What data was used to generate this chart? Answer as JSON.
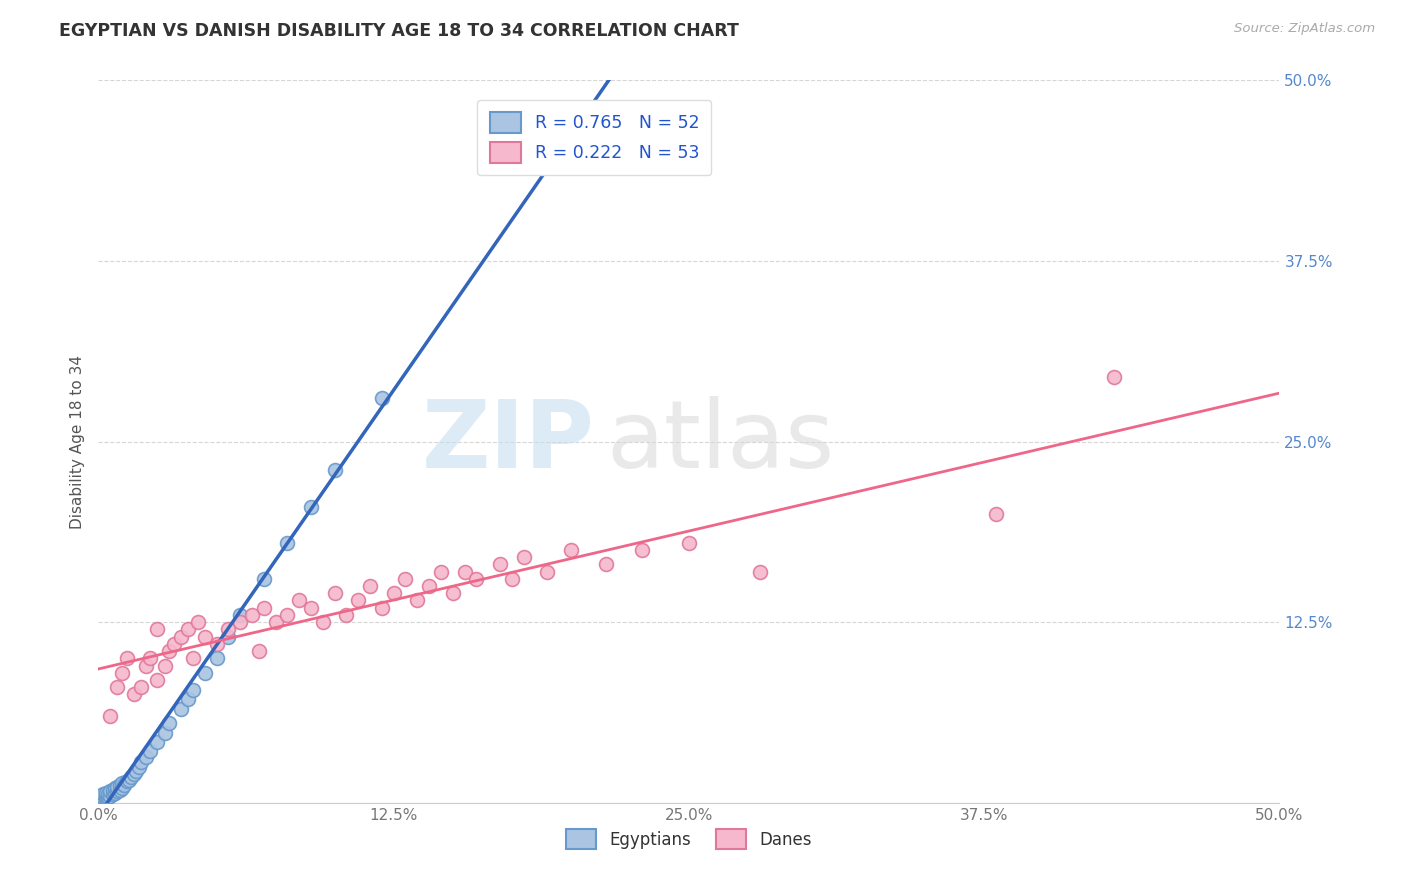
{
  "title": "EGYPTIAN VS DANISH DISABILITY AGE 18 TO 34 CORRELATION CHART",
  "source": "Source: ZipAtlas.com",
  "ylabel": "Disability Age 18 to 34",
  "xlim": [
    0.0,
    0.5
  ],
  "ylim": [
    0.0,
    0.5
  ],
  "xtick_vals": [
    0.0,
    0.125,
    0.25,
    0.375,
    0.5
  ],
  "xtick_labels": [
    "0.0%",
    "12.5%",
    "25.0%",
    "37.5%",
    "50.0%"
  ],
  "ytick_vals": [
    0.0,
    0.125,
    0.25,
    0.375,
    0.5
  ],
  "ytick_labels": [
    "",
    "12.5%",
    "25.0%",
    "37.5%",
    "50.0%"
  ],
  "R_egyptian": 0.765,
  "N_egyptian": 52,
  "R_danish": 0.222,
  "N_danish": 53,
  "egyptian_color": "#aac4e2",
  "egyptian_edge": "#6699cc",
  "danish_color": "#f5b8cc",
  "danish_edge": "#e07899",
  "line_egyptian_color": "#3366bb",
  "line_danish_color": "#ee6688",
  "watermark_zip": "ZIP",
  "watermark_atlas": "atlas",
  "legend_items": [
    "Egyptians",
    "Danes"
  ],
  "egyptian_x": [
    0.0,
    0.0,
    0.0,
    0.001,
    0.001,
    0.001,
    0.002,
    0.002,
    0.002,
    0.003,
    0.003,
    0.003,
    0.004,
    0.004,
    0.005,
    0.005,
    0.006,
    0.006,
    0.007,
    0.007,
    0.008,
    0.008,
    0.009,
    0.009,
    0.01,
    0.01,
    0.011,
    0.012,
    0.013,
    0.014,
    0.015,
    0.016,
    0.017,
    0.018,
    0.02,
    0.022,
    0.025,
    0.028,
    0.03,
    0.035,
    0.038,
    0.04,
    0.045,
    0.05,
    0.055,
    0.06,
    0.07,
    0.08,
    0.09,
    0.1,
    0.12,
    0.2
  ],
  "egyptian_y": [
    0.0,
    0.002,
    0.003,
    0.001,
    0.003,
    0.005,
    0.002,
    0.004,
    0.006,
    0.003,
    0.005,
    0.007,
    0.004,
    0.006,
    0.005,
    0.008,
    0.006,
    0.009,
    0.007,
    0.01,
    0.008,
    0.011,
    0.009,
    0.012,
    0.01,
    0.014,
    0.012,
    0.015,
    0.016,
    0.018,
    0.02,
    0.022,
    0.025,
    0.028,
    0.032,
    0.036,
    0.042,
    0.048,
    0.055,
    0.065,
    0.072,
    0.078,
    0.09,
    0.1,
    0.115,
    0.13,
    0.155,
    0.18,
    0.205,
    0.23,
    0.28,
    0.475
  ],
  "danish_x": [
    0.005,
    0.008,
    0.01,
    0.012,
    0.015,
    0.018,
    0.02,
    0.022,
    0.025,
    0.025,
    0.028,
    0.03,
    0.032,
    0.035,
    0.038,
    0.04,
    0.042,
    0.045,
    0.05,
    0.055,
    0.06,
    0.065,
    0.068,
    0.07,
    0.075,
    0.08,
    0.085,
    0.09,
    0.095,
    0.1,
    0.105,
    0.11,
    0.115,
    0.12,
    0.125,
    0.13,
    0.135,
    0.14,
    0.145,
    0.15,
    0.155,
    0.16,
    0.17,
    0.175,
    0.18,
    0.19,
    0.2,
    0.215,
    0.23,
    0.25,
    0.28,
    0.38,
    0.43
  ],
  "danish_y": [
    0.06,
    0.08,
    0.09,
    0.1,
    0.075,
    0.08,
    0.095,
    0.1,
    0.085,
    0.12,
    0.095,
    0.105,
    0.11,
    0.115,
    0.12,
    0.1,
    0.125,
    0.115,
    0.11,
    0.12,
    0.125,
    0.13,
    0.105,
    0.135,
    0.125,
    0.13,
    0.14,
    0.135,
    0.125,
    0.145,
    0.13,
    0.14,
    0.15,
    0.135,
    0.145,
    0.155,
    0.14,
    0.15,
    0.16,
    0.145,
    0.16,
    0.155,
    0.165,
    0.155,
    0.17,
    0.16,
    0.175,
    0.165,
    0.175,
    0.18,
    0.16,
    0.2,
    0.295
  ]
}
